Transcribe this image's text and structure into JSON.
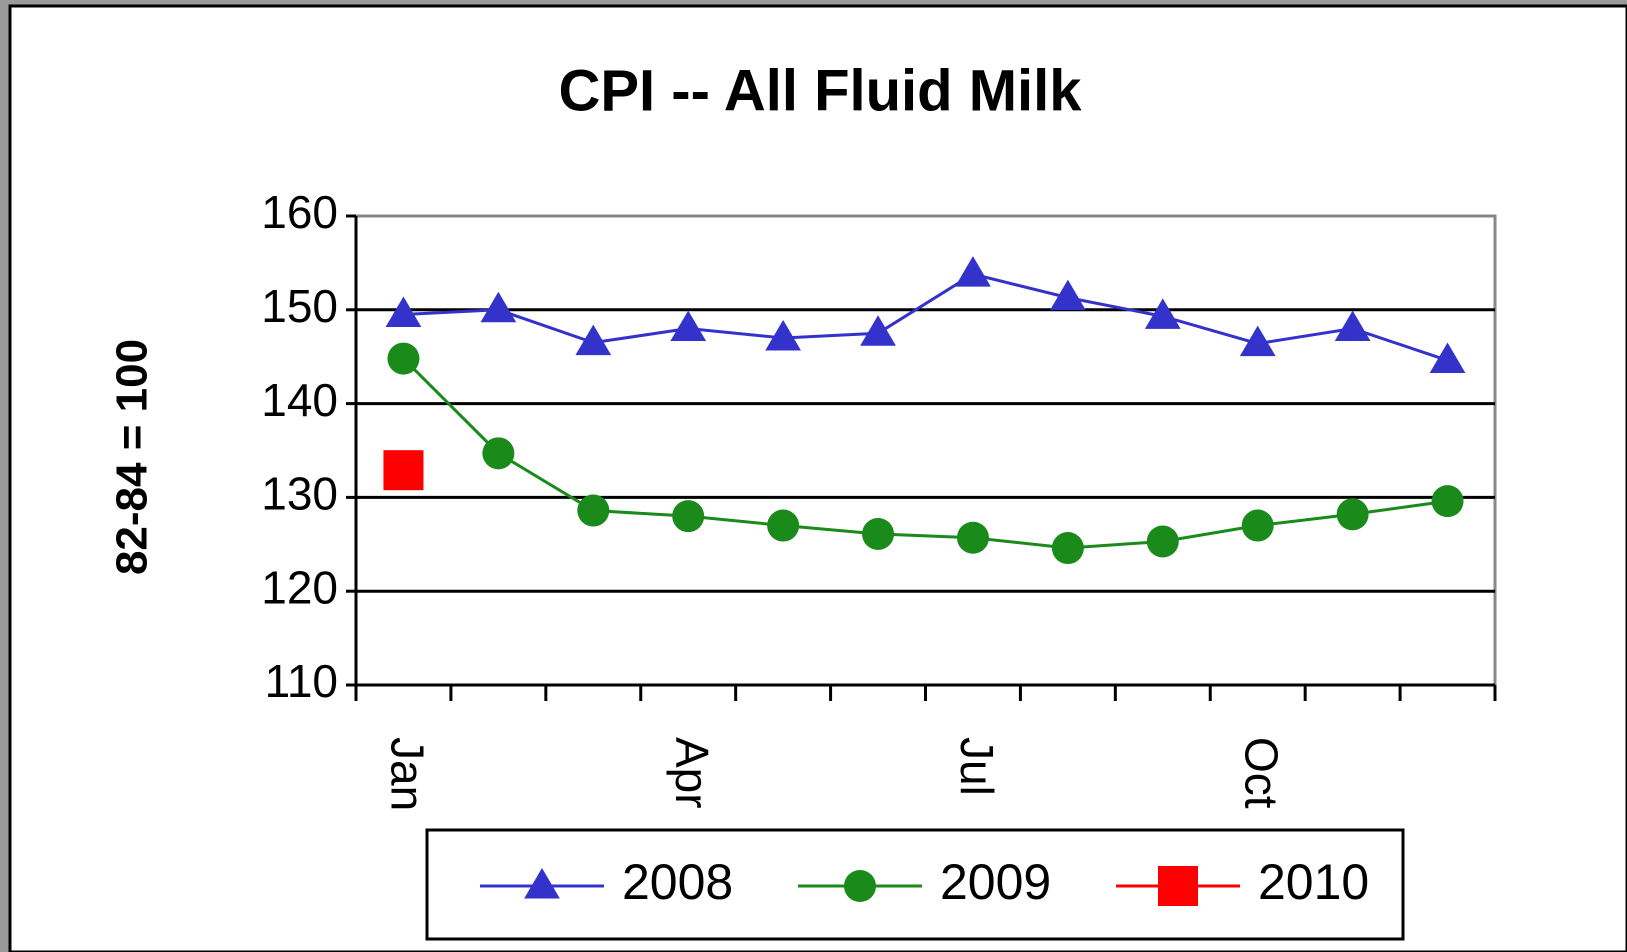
{
  "chart_data": {
    "type": "line",
    "title": "CPI -- All Fluid Milk",
    "y_label": "82-84 = 100",
    "categories": [
      "Jan",
      null,
      null,
      "Apr",
      null,
      null,
      "Jul",
      null,
      null,
      "Oct",
      null,
      null
    ],
    "series": [
      {
        "name": "2008",
        "color": "#3333cc",
        "marker": "triangle",
        "values": [
          149.5,
          150,
          146.5,
          148,
          147,
          147.5,
          153.8,
          151.3,
          149.3,
          146.4,
          148,
          144.6
        ]
      },
      {
        "name": "2009",
        "color": "#1a8a1a",
        "marker": "circle",
        "values": [
          144.8,
          134.7,
          128.6,
          128,
          127,
          126.1,
          125.7,
          124.6,
          125.3,
          127,
          128.2,
          129.6
        ]
      },
      {
        "name": "2010",
        "color": "#ff0000",
        "marker": "square",
        "values": [
          132.9,
          null,
          null,
          null,
          null,
          null,
          null,
          null,
          null,
          null,
          null,
          null
        ]
      }
    ],
    "ylim": [
      110,
      160
    ],
    "yticks": [
      110,
      120,
      130,
      140,
      150,
      160
    ],
    "grid": true,
    "legend": "bottom"
  }
}
